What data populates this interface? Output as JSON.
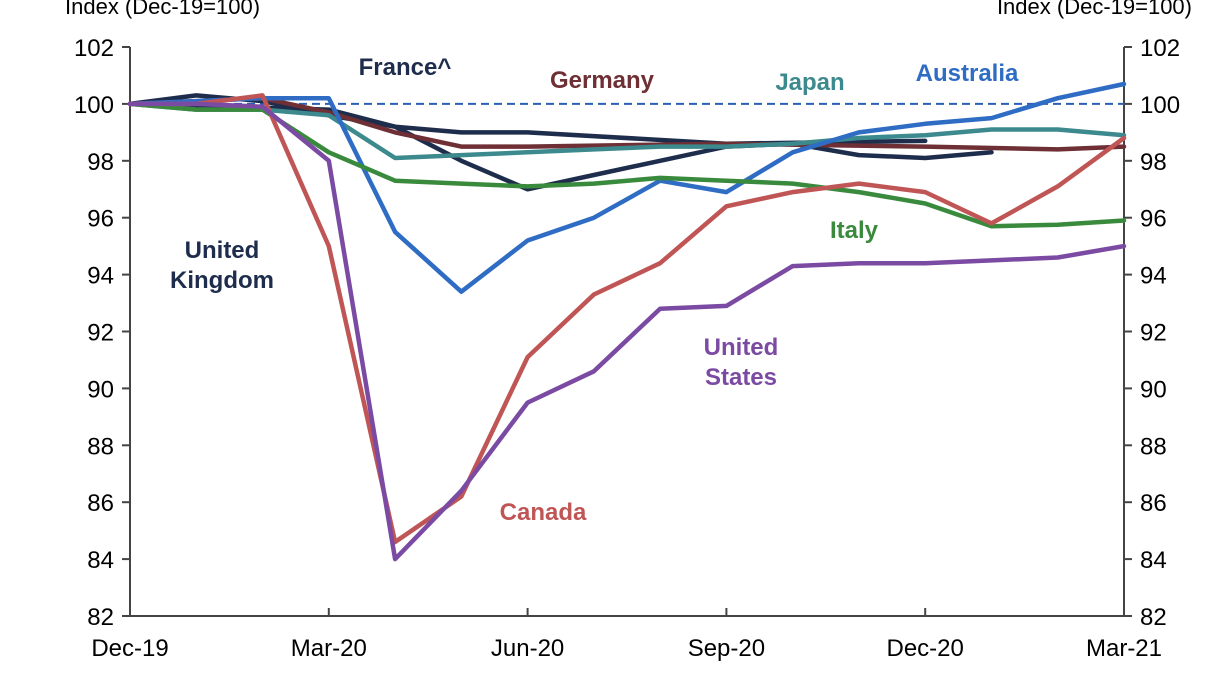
{
  "chart_data": {
    "type": "line",
    "y_unit_left": "Index (Dec-19=100)",
    "y_unit_right": "Index (Dec-19=100)",
    "ylim": [
      82,
      102
    ],
    "yticks": [
      82,
      84,
      86,
      88,
      90,
      92,
      94,
      96,
      98,
      100,
      102
    ],
    "ytick_labels": [
      "82",
      "84",
      "86",
      "88",
      "90",
      "92",
      "94",
      "96",
      "98",
      "100",
      "102"
    ],
    "x_tick_labels": [
      "Dec-19",
      "Mar-20",
      "Jun-20",
      "Sep-20",
      "Dec-20",
      "Mar-21"
    ],
    "x_tick_months": [
      0,
      3,
      6,
      9,
      12,
      15
    ],
    "xlim": [
      0,
      15
    ],
    "reference_line": {
      "value": 100,
      "style": "dashed",
      "color": "#2b5fb4"
    },
    "grid": false,
    "series": [
      {
        "name": "United Kingdom",
        "label_lines": [
          "United",
          "Kingdom"
        ],
        "color": "#1f2d4d",
        "x": [
          0,
          1,
          2,
          3,
          4,
          5,
          6,
          7,
          8,
          9,
          10,
          11,
          12,
          13
        ],
        "y": [
          100,
          100.3,
          100.1,
          99.6,
          99.2,
          98.0,
          97.0,
          97.5,
          98.0,
          98.5,
          98.6,
          98.2,
          98.1,
          98.3
        ]
      },
      {
        "name": "France^",
        "label_lines": [
          "France^"
        ],
        "color": "#1f2d4d",
        "x": [
          0,
          3,
          4,
          5,
          6,
          9,
          12
        ],
        "y": [
          100,
          99.8,
          99.2,
          99.0,
          99.0,
          98.6,
          98.7
        ]
      },
      {
        "name": "Germany",
        "label_lines": [
          "Germany"
        ],
        "color": "#6e2f35",
        "x": [
          0,
          1,
          2,
          3,
          4,
          5,
          6,
          9,
          12,
          14,
          15
        ],
        "y": [
          100,
          100.1,
          100.2,
          99.7,
          99.0,
          98.5,
          98.5,
          98.6,
          98.5,
          98.4,
          98.5
        ]
      },
      {
        "name": "Japan",
        "label_lines": [
          "Japan"
        ],
        "color": "#3d8a8e",
        "x": [
          0,
          1,
          2,
          3,
          4,
          5,
          6,
          7,
          8,
          9,
          10,
          11,
          12,
          13,
          14,
          15
        ],
        "y": [
          100,
          99.8,
          99.8,
          99.6,
          98.1,
          98.2,
          98.3,
          98.4,
          98.5,
          98.5,
          98.6,
          98.8,
          98.9,
          99.1,
          99.1,
          98.9
        ]
      },
      {
        "name": "Australia",
        "label_lines": [
          "Australia"
        ],
        "color": "#2f6cc4",
        "x": [
          0,
          1,
          2,
          3,
          4,
          5,
          6,
          7,
          8,
          9,
          10,
          11,
          12,
          13,
          14,
          15
        ],
        "y": [
          100,
          100.1,
          100.2,
          100.2,
          95.5,
          93.4,
          95.2,
          96.0,
          97.3,
          96.9,
          98.3,
          99.0,
          99.3,
          99.5,
          100.2,
          100.7
        ]
      },
      {
        "name": "Italy",
        "label_lines": [
          "Italy"
        ],
        "color": "#3a8a3e",
        "x": [
          0,
          1,
          2,
          3,
          4,
          5,
          6,
          7,
          8,
          9,
          10,
          11,
          12,
          13,
          14,
          15
        ],
        "y": [
          100,
          99.8,
          99.8,
          98.3,
          97.3,
          97.2,
          97.1,
          97.2,
          97.4,
          97.3,
          97.2,
          96.9,
          96.5,
          95.7,
          95.75,
          95.9
        ]
      },
      {
        "name": "Canada",
        "label_lines": [
          "Canada"
        ],
        "color": "#c05555",
        "x": [
          0,
          1,
          2,
          3,
          4,
          5,
          6,
          7,
          8,
          9,
          10,
          11,
          12,
          13,
          14,
          15
        ],
        "y": [
          100,
          100.0,
          100.3,
          95.0,
          84.6,
          86.2,
          91.1,
          93.3,
          94.4,
          96.4,
          96.9,
          97.2,
          96.9,
          95.8,
          97.1,
          98.8
        ]
      },
      {
        "name": "United States",
        "label_lines": [
          "United",
          "States"
        ],
        "color": "#7b4ba3",
        "x": [
          0,
          1,
          2,
          3,
          4,
          5,
          6,
          7,
          8,
          9,
          10,
          11,
          12,
          13,
          14,
          15
        ],
        "y": [
          100,
          100.0,
          99.9,
          98.0,
          84.0,
          86.4,
          89.5,
          90.6,
          92.8,
          92.9,
          94.3,
          94.4,
          94.4,
          94.5,
          94.6,
          95.0
        ]
      }
    ]
  }
}
